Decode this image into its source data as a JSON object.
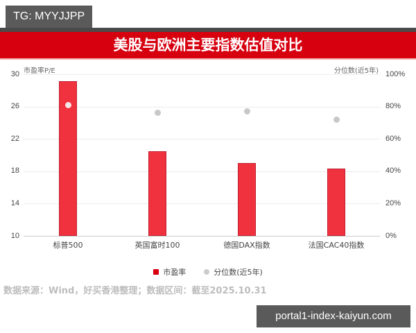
{
  "badge": {
    "text": "TG: MYYJJPP"
  },
  "title": "美股与欧洲主要指数估值对比",
  "watermark": "portal1-index-kaiyun.com",
  "source": "数据来源：Wind，好买香港整理；数据区间：截至2025.10.31",
  "colors": {
    "title_bg": "#d7000f",
    "bar": "#f0323f",
    "dot": "#c8c8c8",
    "badge_bg": "#5a5a5a"
  },
  "chart_data": {
    "type": "bar",
    "title": "美股与欧洲主要指数估值对比",
    "categories": [
      "标普500",
      "英国富时100",
      "德国DAX指数",
      "法国CAC40指数"
    ],
    "series": [
      {
        "name": "市盈率",
        "type": "bar",
        "axis": "left",
        "values": [
          29.1,
          20.5,
          19.0,
          18.3
        ]
      },
      {
        "name": "分位数(近5年)",
        "type": "scatter",
        "axis": "right",
        "values": [
          81,
          76,
          77,
          72
        ],
        "unit": "%"
      }
    ],
    "ylabel": "市盈率P/E",
    "ylabel_right": "分位数(近5年)",
    "ylim": [
      10,
      30
    ],
    "ylim_right": [
      0,
      100
    ],
    "yticks": [
      "30",
      "26",
      "22",
      "18",
      "14",
      "10"
    ],
    "yticks_right": [
      "100%",
      "80%",
      "60%",
      "40%",
      "20%",
      "0%"
    ],
    "grid": true,
    "legend_position": "bottom",
    "legend": [
      "市盈率",
      "分位数(近5年)"
    ]
  }
}
